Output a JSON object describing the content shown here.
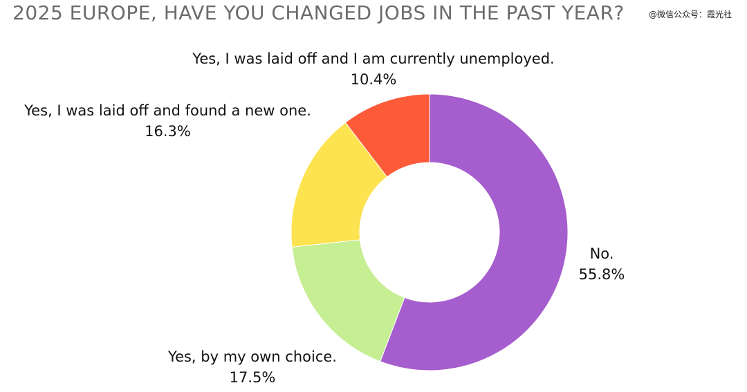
{
  "title": "2025 EUROPE, HAVE YOU CHANGED JOBS IN THE PAST YEAR?",
  "watermark": "@微信公众号：霞光社",
  "chart_data": {
    "type": "pie",
    "donut": true,
    "title": "2025 EUROPE, HAVE YOU CHANGED JOBS IN THE PAST YEAR?",
    "slices": [
      {
        "label": "No.",
        "value": 55.8,
        "value_label": "55.8%",
        "color": "#a65dcd"
      },
      {
        "label": "Yes, by my own choice.",
        "value": 17.5,
        "value_label": "17.5%",
        "color": "#c6ee93"
      },
      {
        "label": "Yes, I was laid off and found a new one.",
        "value": 16.3,
        "value_label": "16.3%",
        "color": "#fce34f"
      },
      {
        "label": "Yes, I was laid off and I am currently unemployed.",
        "value": 10.4,
        "value_label": "10.4%",
        "color": "#fd5a3a"
      }
    ],
    "legend": "none"
  }
}
